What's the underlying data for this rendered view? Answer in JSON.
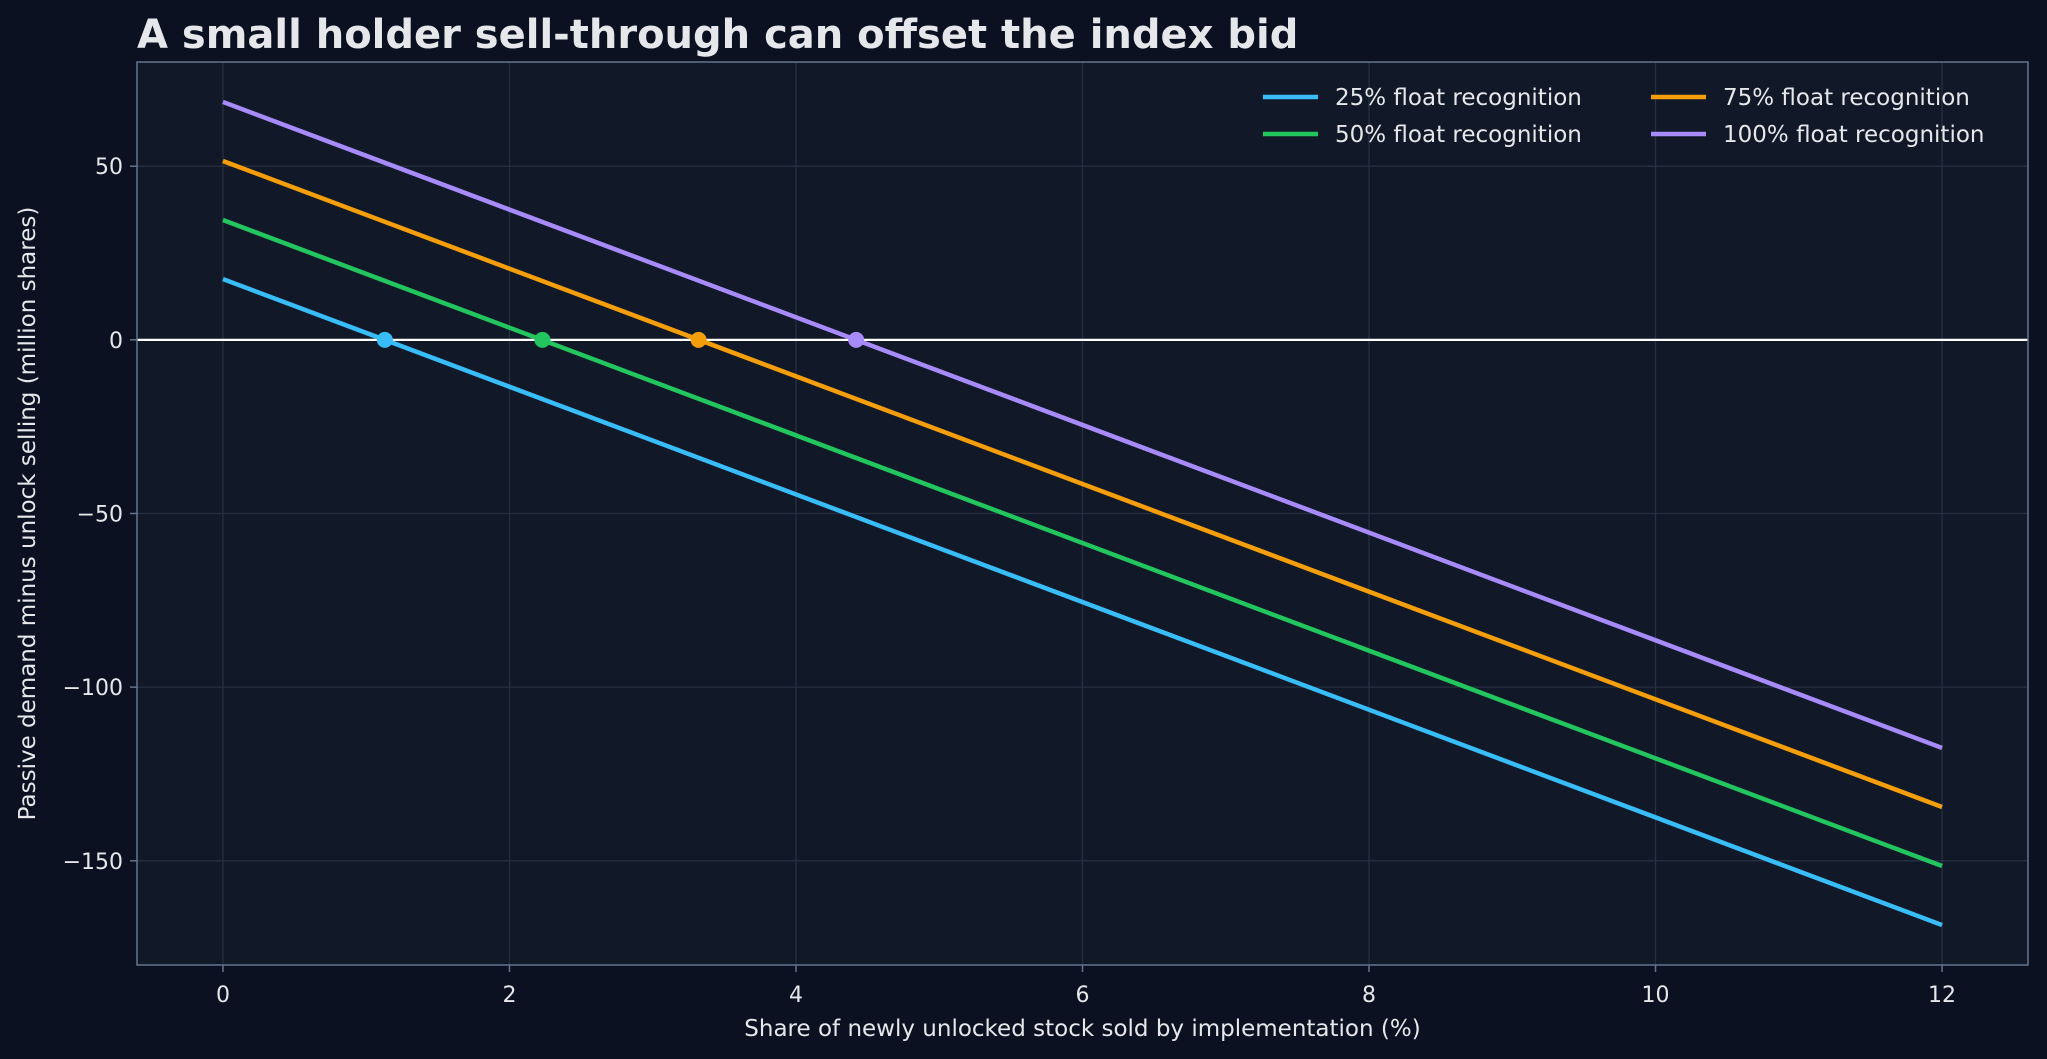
{
  "colors": {
    "background": "#0b1120",
    "plot_background": "#111827",
    "grid": "#263041",
    "axes_frame": "#64748b",
    "zero_line": "#ffffff",
    "text": "#e5e7eb"
  },
  "chart_data": {
    "type": "line",
    "title": "A small holder sell-through can offset the index bid",
    "xlabel": "Share of newly unlocked stock sold by implementation (%)",
    "ylabel": "Passive demand minus unlock selling (million shares)",
    "xlim": [
      -0.6,
      12.6
    ],
    "ylim": [
      -180,
      80
    ],
    "x_ticks": [
      0,
      2,
      4,
      6,
      8,
      10,
      12
    ],
    "y_ticks": [
      50,
      0,
      -50,
      -100,
      -150
    ],
    "x_tick_labels": [
      "0",
      "2",
      "4",
      "6",
      "8",
      "10",
      "12"
    ],
    "y_tick_labels": [
      "50",
      "0",
      "−50",
      "−100",
      "−150"
    ],
    "grid": true,
    "zero_line": 0,
    "legend_position": "top-right",
    "x": [
      0,
      12
    ],
    "series": [
      {
        "name": "25% float recognition",
        "color": "#38bdf8",
        "values": [
          17.5,
          -168.5
        ],
        "breakeven_x": 1.13
      },
      {
        "name": "50% float recognition",
        "color": "#22c55e",
        "values": [
          34.5,
          -151.5
        ],
        "breakeven_x": 2.23
      },
      {
        "name": "75% float recognition",
        "color": "#f59e0b",
        "values": [
          51.5,
          -134.5
        ],
        "breakeven_x": 3.32
      },
      {
        "name": "100% float recognition",
        "color": "#a78bfa",
        "values": [
          68.5,
          -117.5
        ],
        "breakeven_x": 4.42
      }
    ]
  }
}
